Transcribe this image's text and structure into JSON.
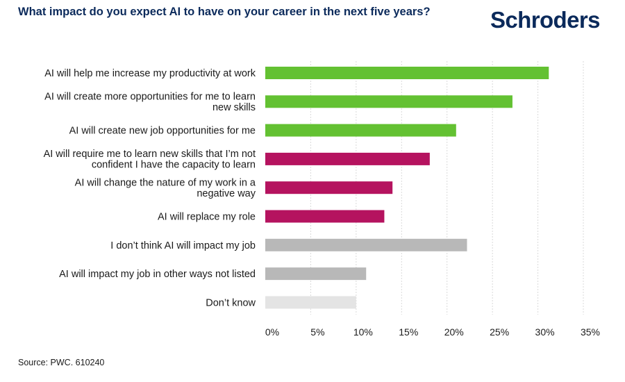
{
  "header": {
    "title": "What impact do you expect AI to have on your career in the next five years?",
    "logo_text": "Schroders"
  },
  "footer": {
    "source": "Source: PWC. 610240"
  },
  "colors": {
    "positive": "#63c132",
    "negative": "#b5135f",
    "neutral": "#b8b8b8",
    "dont_know": "#e4e4e4",
    "brand": "#0b2a5b"
  },
  "chart_data": {
    "type": "bar",
    "orientation": "horizontal",
    "title": "What impact do you expect AI to have on your career in the next five years?",
    "categories": [
      [
        "AI will help me increase my productivity at work"
      ],
      [
        "AI will create more opportunities for me to learn",
        "new skills"
      ],
      [
        "AI will create new job opportunities for me"
      ],
      [
        "AI will require me to learn new skills that I’m not",
        "confident I have the capacity to learn"
      ],
      [
        "AI will change the nature of my work in a",
        "negative way"
      ],
      [
        "AI will replace my role"
      ],
      [
        "I don’t think AI will impact my job"
      ],
      [
        "AI will impact my job in other ways not listed"
      ],
      [
        "Don’t know"
      ]
    ],
    "values": [
      31.2,
      27.2,
      21.0,
      18.1,
      14.0,
      13.1,
      22.2,
      11.1,
      10.0
    ],
    "bar_colors": [
      "#63c132",
      "#63c132",
      "#63c132",
      "#b5135f",
      "#b5135f",
      "#b5135f",
      "#b8b8b8",
      "#b8b8b8",
      "#e4e4e4"
    ],
    "xlim": [
      0,
      35
    ],
    "xticks": [
      0,
      5,
      10,
      15,
      20,
      25,
      30,
      35
    ],
    "xtick_labels": [
      "0%",
      "5%",
      "10%",
      "15%",
      "20%",
      "25%",
      "30%",
      "35%"
    ],
    "grid": "vertical dashed",
    "legend": "none"
  }
}
